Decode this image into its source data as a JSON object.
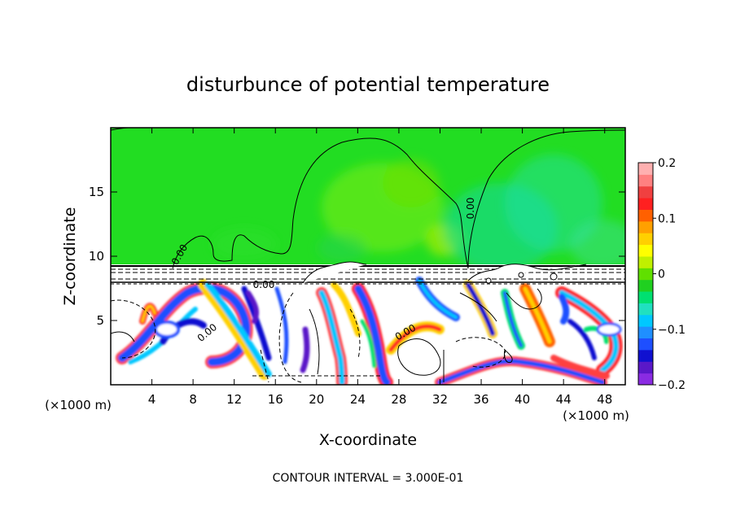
{
  "chart_data": {
    "type": "heatmap",
    "title": "disturbunce of potential temperature",
    "xlabel": "X-coordinate",
    "ylabel": "Z-coordinate",
    "x_unit": "(×1000 m)",
    "y_unit": "(×1000 m)",
    "xlim": [
      0,
      50
    ],
    "ylim": [
      0,
      20
    ],
    "x_ticks": [
      4,
      8,
      12,
      16,
      20,
      24,
      28,
      32,
      36,
      40,
      44,
      48
    ],
    "y_ticks": [
      5,
      10,
      15
    ],
    "colorbar": {
      "range": [
        -0.2,
        0.2
      ],
      "tick_labels": [
        "0.2",
        "0.1",
        "0",
        "−0.1",
        "−0.2"
      ],
      "tick_values": [
        0.2,
        0.1,
        0,
        -0.1,
        -0.2
      ],
      "colors": [
        "#8a2be2",
        "#5a18c8",
        "#1010d0",
        "#1e4fff",
        "#1f8fff",
        "#00c8ff",
        "#20e0c0",
        "#00e070",
        "#20d020",
        "#60e000",
        "#c0f000",
        "#ffff00",
        "#ffd000",
        "#ffa000",
        "#ff6000",
        "#ff2020",
        "#f04040",
        "#ff8080",
        "#ffb0b0"
      ]
    },
    "contour_labels": [
      "0.00",
      "0.00",
      "0.00",
      "0.00",
      "0.00"
    ],
    "upper_layer_value": 0.0,
    "footer": "CONTOUR INTERVAL = 3.000E-01"
  }
}
